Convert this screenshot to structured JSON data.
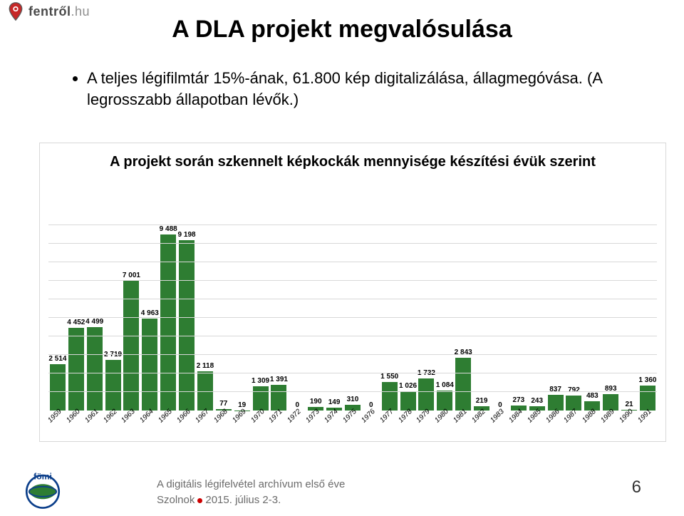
{
  "header": {
    "brand_main": "fentről",
    "brand_suffix": ".hu",
    "pin_fill": "#c62828",
    "pin_stroke": "#5a5a5a"
  },
  "title": "A DLA projekt megvalósulása",
  "bullets": [
    "A teljes légifilmtár 15%-ának, 61.800 kép digitalizálása, állagmegóvása. (A legrosszabb állapotban lévők.)"
  ],
  "chart": {
    "title": "A projekt során szkennelt képkockák mennyisége készítési évük szerint",
    "type": "bar",
    "ylim": [
      0,
      10000
    ],
    "gridlines": [
      1000,
      2000,
      3000,
      4000,
      5000,
      6000,
      7000,
      8000,
      9000,
      10000
    ],
    "grid_color": "#d8d8d8",
    "bar_color": "#2e7d32",
    "label_color": "#000000",
    "label_fontsize": 10,
    "xaxis_fontsize": 10,
    "years": [
      "1959",
      "1960",
      "1961",
      "1962",
      "1963",
      "1964",
      "1965",
      "1966",
      "1967",
      "1968",
      "1969",
      "1970",
      "1971",
      "1972",
      "1973",
      "1974",
      "1975",
      "1976",
      "1977",
      "1978",
      "1979",
      "1980",
      "1981",
      "1982",
      "1983",
      "1984",
      "1985",
      "1986",
      "1987",
      "1988",
      "1989",
      "1990",
      "1991"
    ],
    "values": [
      2514,
      4452,
      4499,
      2719,
      7001,
      4963,
      9488,
      9198,
      2118,
      77,
      19,
      1309,
      1391,
      0,
      190,
      149,
      310,
      0,
      1550,
      1026,
      1732,
      1084,
      2843,
      219,
      0,
      273,
      243,
      837,
      792,
      483,
      893,
      21,
      1360
    ],
    "labels": [
      "2 514",
      "4 452",
      "4 499",
      "2 719",
      "7 001",
      "4 963",
      "9 488",
      "9 198",
      "2 118",
      "77",
      "19",
      "1 309",
      "1 391",
      "0",
      "190",
      "149",
      "310",
      "0",
      "1 550",
      "1 026",
      "1 732",
      "1 084",
      "2 843",
      "219",
      "0",
      "273",
      "243",
      "837",
      "792",
      "483",
      "893",
      "21",
      "1 360"
    ]
  },
  "footer": {
    "line1": "A digitális légifelvétel archívum első éve",
    "line2_a": "Szolnok",
    "line2_b": "2015. július 2-3.",
    "page": "6",
    "fomi_green": "#2e7d32",
    "fomi_blue": "#0b3e8a",
    "fomi_text": "fömi"
  }
}
